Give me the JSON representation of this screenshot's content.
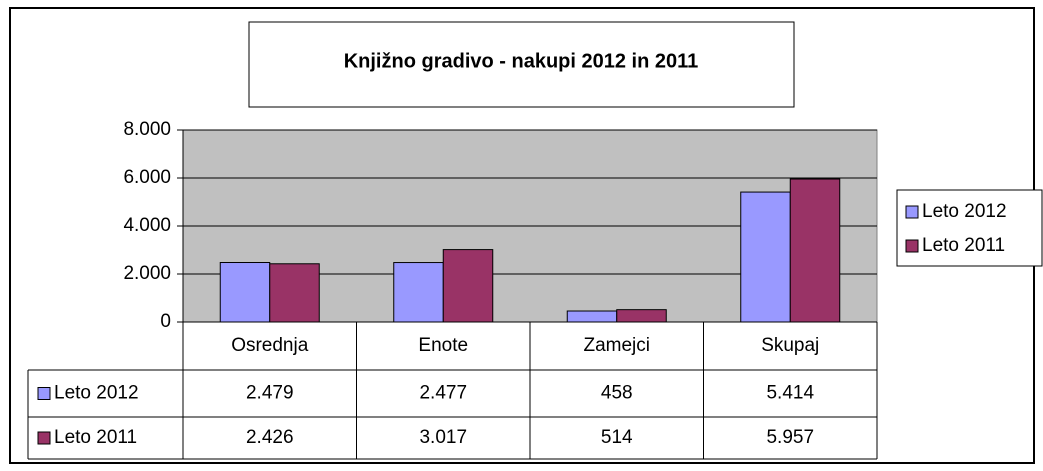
{
  "chart_data": {
    "type": "bar",
    "title": "Knjižno gradivo - nakupi 2012 in 2011",
    "categories": [
      "Osrednja",
      "Enote",
      "Zamejci",
      "Skupaj"
    ],
    "series": [
      {
        "name": "Leto 2012",
        "color": "#9999ff",
        "values": [
          2479,
          2477,
          458,
          5414
        ],
        "value_labels": [
          "2.479",
          "2.477",
          "458",
          "5.414"
        ]
      },
      {
        "name": "Leto 2011",
        "color": "#993366",
        "values": [
          2426,
          3017,
          514,
          5957
        ],
        "value_labels": [
          "2.426",
          "3.017",
          "514",
          "5.957"
        ]
      }
    ],
    "ylim": [
      0,
      8000
    ],
    "yticks": [
      0,
      {
        "value": 2000,
        "label": "2.000"
      },
      {
        "value": 4000,
        "label": "4.000"
      },
      {
        "value": 6000,
        "label": "6.000"
      },
      {
        "value": 8000,
        "label": "8.000"
      }
    ],
    "grid": true,
    "legend": "right",
    "plot_background": "#c0c0c0"
  }
}
